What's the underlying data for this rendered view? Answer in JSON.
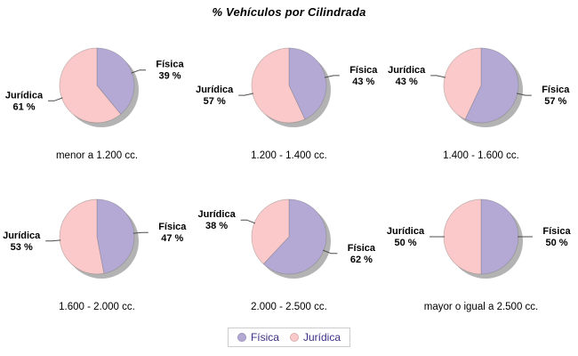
{
  "title": "% Vehículos por Cilindrada",
  "series_labels": [
    "Física",
    "Jurídica"
  ],
  "colors": {
    "fisica": "#B4A8D5",
    "juridica": "#FBC9C9",
    "shadow": "#A0A0A0",
    "leader_line": "#4D4D4D",
    "label_text": "#000000",
    "legend_text": "#3D2E85",
    "legend_border": "#CCCCCC"
  },
  "legend": {
    "position": "bottom",
    "items": [
      {
        "label": "Física",
        "color": "#B4A8D5"
      },
      {
        "label": "Jurídica",
        "color": "#FBC9C9"
      }
    ]
  },
  "chart_data": [
    {
      "type": "pie",
      "category": "menor a 1.200 cc.",
      "labels": [
        "Física",
        "Jurídica"
      ],
      "values": [
        39,
        61
      ],
      "value_labels": [
        "39 %",
        "61 %"
      ]
    },
    {
      "type": "pie",
      "category": "1.200 - 1.400 cc.",
      "labels": [
        "Física",
        "Jurídica"
      ],
      "values": [
        43,
        57
      ],
      "value_labels": [
        "43 %",
        "57 %"
      ]
    },
    {
      "type": "pie",
      "category": "1.400 - 1.600 cc.",
      "labels": [
        "Física",
        "Jurídica"
      ],
      "values": [
        57,
        43
      ],
      "value_labels": [
        "57 %",
        "43 %"
      ]
    },
    {
      "type": "pie",
      "category": "1.600 - 2.000 cc.",
      "labels": [
        "Física",
        "Jurídica"
      ],
      "values": [
        47,
        53
      ],
      "value_labels": [
        "47 %",
        "53 %"
      ]
    },
    {
      "type": "pie",
      "category": "2.000 - 2.500 cc.",
      "labels": [
        "Física",
        "Jurídica"
      ],
      "values": [
        62,
        38
      ],
      "value_labels": [
        "62 %",
        "38 %"
      ]
    },
    {
      "type": "pie",
      "category": "mayor o igual a 2.500 cc.",
      "labels": [
        "Física",
        "Jurídica"
      ],
      "values": [
        50,
        50
      ],
      "value_labels": [
        "50 %",
        "50 %"
      ]
    }
  ]
}
